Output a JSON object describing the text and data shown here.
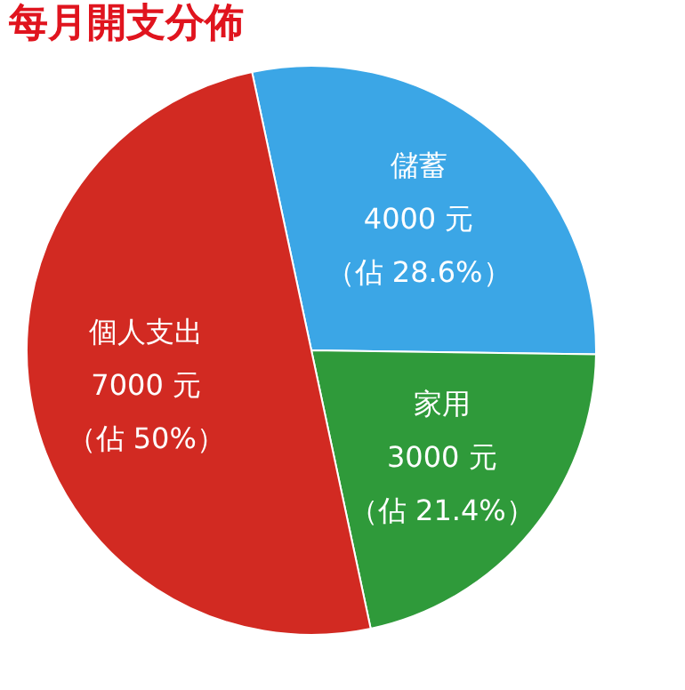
{
  "chart_data": {
    "type": "pie",
    "title": "每月開支分佈",
    "categories": [
      "儲蓄",
      "家用",
      "個人支出"
    ],
    "values": [
      4000,
      3000,
      7000
    ],
    "value_labels": [
      "4000 元",
      "3000 元",
      "7000 元"
    ],
    "annotations": [
      "（佔 28.6%）",
      "（佔 21.4%）",
      "（佔 50%）"
    ],
    "colors": [
      "#3ba6e6",
      "#2f9a3a",
      "#d22a22"
    ],
    "legend": false
  }
}
